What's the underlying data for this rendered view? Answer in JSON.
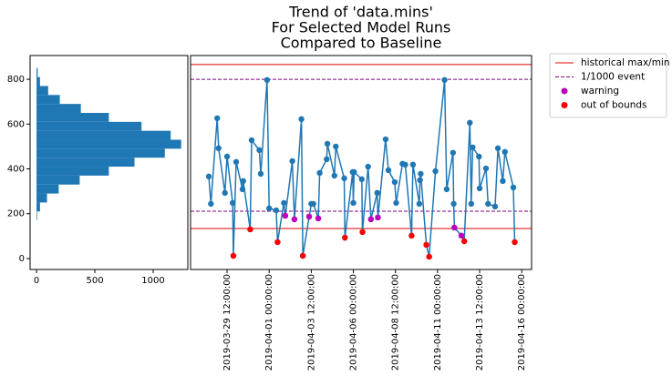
{
  "chart_data": [
    {
      "type": "histogram",
      "orientation": "horizontal",
      "color": "#1f77b4",
      "bins": [
        170,
        210,
        250,
        290,
        330,
        370,
        410,
        450,
        490,
        530,
        570,
        610,
        650,
        690,
        730,
        770,
        810,
        850
      ],
      "counts": [
        5,
        30,
        90,
        190,
        370,
        620,
        840,
        1100,
        1240,
        1150,
        900,
        620,
        380,
        200,
        100,
        30,
        10
      ],
      "xlim": [
        -55,
        1297
      ],
      "xticks": [
        0,
        500,
        1000
      ],
      "ylim": [
        -49,
        906
      ],
      "yticks": [
        0,
        200,
        400,
        600,
        800
      ]
    },
    {
      "type": "line",
      "title": [
        "Trend of 'data.mins'",
        "For Selected Model Runs",
        "Compared to Baseline"
      ],
      "xlim": [
        "2019-03-27 08:00:00",
        "2019-04-16 14:00:00"
      ],
      "xticks": [
        "2019-03-29 12:00:00",
        "2019-04-01 00:00:00",
        "2019-04-03 12:00:00",
        "2019-04-06 00:00:00",
        "2019-04-08 12:00:00",
        "2019-04-11 00:00:00",
        "2019-04-13 12:00:00",
        "2019-04-16 00:00:00"
      ],
      "ylim": [
        -49,
        906
      ],
      "legend": "outside upper right",
      "hlines": [
        {
          "name": "historical max/min",
          "color": "#e00000",
          "style": "solid",
          "values": [
            866,
            134
          ]
        },
        {
          "name": "1/1000 event",
          "color": "#800080",
          "style": "dashed",
          "values": [
            800,
            211
          ]
        }
      ],
      "series": [
        {
          "kind": "line",
          "color": "#1f77b4",
          "x": [
            "2019-03-28 10:00:00",
            "2019-03-28 13:00:00",
            "2019-03-28 22:00:00",
            "2019-03-29 00:00:00",
            "2019-03-29 09:00:00",
            "2019-03-29 12:00:00",
            "2019-03-29 20:00:00",
            "2019-03-29 21:00:00",
            "2019-03-30 01:00:00",
            "2019-03-30 10:00:00",
            "2019-03-30 11:00:00",
            "2019-03-30 21:00:00",
            "2019-03-30 23:00:00",
            "2019-03-31 10:00:00",
            "2019-03-31 12:00:00",
            "2019-03-31 21:00:00",
            "2019-04-01 00:00:00",
            "2019-04-01 10:00:00",
            "2019-04-01 12:00:00",
            "2019-04-01 21:00:00",
            "2019-04-01 23:00:00",
            "2019-04-02 09:00:00",
            "2019-04-02 12:00:00",
            "2019-04-02 22:00:00",
            "2019-04-03 00:00:00",
            "2019-04-03 09:00:00",
            "2019-04-03 12:00:00",
            "2019-04-03 15:00:00",
            "2019-04-03 22:00:00",
            "2019-04-04 00:00:00",
            "2019-04-04 10:00:00",
            "2019-04-04 11:00:00",
            "2019-04-04 21:00:00",
            "2019-04-04 23:00:00",
            "2019-04-05 11:00:00",
            "2019-04-05 12:00:00",
            "2019-04-05 23:00:00",
            "2019-04-06 00:00:00",
            "2019-04-06 01:00:00",
            "2019-04-06 12:00:00",
            "2019-04-06 13:00:00",
            "2019-04-06 21:00:00",
            "2019-04-07 01:00:00",
            "2019-04-07 10:00:00",
            "2019-04-07 11:00:00",
            "2019-04-07 22:00:00",
            "2019-04-08 02:00:00",
            "2019-04-08 11:00:00",
            "2019-04-08 13:00:00",
            "2019-04-08 22:00:00",
            "2019-04-09 02:00:00",
            "2019-04-09 11:00:00",
            "2019-04-09 13:00:00",
            "2019-04-09 22:00:00",
            "2019-04-09 23:00:00",
            "2019-04-10 00:00:00",
            "2019-04-10 08:00:00",
            "2019-04-10 12:00:00",
            "2019-04-10 21:00:00",
            "2019-04-11 10:00:00",
            "2019-04-11 13:00:00",
            "2019-04-11 22:00:00",
            "2019-04-11 23:00:00",
            "2019-04-12 00:00:00",
            "2019-04-12 10:00:00",
            "2019-04-12 14:00:00",
            "2019-04-12 22:00:00",
            "2019-04-13 00:00:00",
            "2019-04-13 02:00:00",
            "2019-04-13 11:00:00",
            "2019-04-13 12:00:00",
            "2019-04-13 21:00:00",
            "2019-04-14 00:00:00",
            "2019-04-14 10:00:00",
            "2019-04-14 14:00:00",
            "2019-04-14 21:00:00",
            "2019-04-15 00:00:00",
            "2019-04-15 12:00:00",
            "2019-04-15 14:00:00"
          ],
          "values": [
            366,
            244,
            626,
            492,
            293,
            455,
            248,
            12,
            431,
            309,
            346,
            130,
            528,
            484,
            378,
            797,
            224,
            215,
            73,
            248,
            191,
            435,
            175,
            622,
            12,
            187,
            244,
            244,
            179,
            382,
            443,
            512,
            370,
            500,
            358,
            93,
            386,
            248,
            386,
            354,
            118,
            410,
            175,
            293,
            183,
            532,
            394,
            341,
            248,
            423,
            419,
            102,
            419,
            244,
            350,
            378,
            61,
            8,
            390,
            797,
            309,
            472,
            244,
            138,
            102,
            77,
            606,
            244,
            496,
            455,
            313,
            402,
            244,
            232,
            492,
            346,
            476,
            317,
            73
          ]
        },
        {
          "name": "warning",
          "kind": "scatter",
          "color": "#bf00bf",
          "x": [
            "2019-04-01 23:00:00",
            "2019-04-02 12:00:00",
            "2019-04-03 09:00:00",
            "2019-04-03 22:00:00",
            "2019-04-07 01:00:00",
            "2019-04-07 11:00:00",
            "2019-04-12 00:00:00",
            "2019-04-12 10:00:00"
          ],
          "values": [
            191,
            175,
            187,
            179,
            175,
            183,
            138,
            102
          ]
        },
        {
          "name": "out of bounds",
          "kind": "scatter",
          "color": "#ff0000",
          "x": [
            "2019-03-29 21:00:00",
            "2019-03-30 21:00:00",
            "2019-04-01 12:00:00",
            "2019-04-03 00:00:00",
            "2019-04-05 12:00:00",
            "2019-04-06 13:00:00",
            "2019-04-09 11:00:00",
            "2019-04-10 08:00:00",
            "2019-04-10 12:00:00",
            "2019-04-12 14:00:00",
            "2019-04-15 14:00:00"
          ],
          "values": [
            12,
            130,
            73,
            12,
            93,
            118,
            102,
            61,
            8,
            77,
            73
          ]
        }
      ]
    }
  ]
}
